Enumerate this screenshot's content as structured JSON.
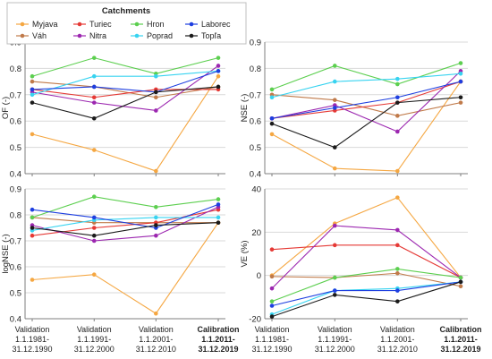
{
  "chart_data": [
    {
      "id": "of",
      "type": "line",
      "ylabel": "OF (-)",
      "ylim": [
        0.4,
        0.9
      ],
      "yticks": [
        0.4,
        0.5,
        0.6,
        0.7,
        0.8,
        0.9
      ],
      "yticklabels": [
        "0.4",
        "0.5",
        "0.6",
        "0.7",
        "0.8",
        "0.9"
      ],
      "grid": true,
      "series": [
        {
          "name": "Myjava",
          "color": "#f5a742",
          "values": [
            0.55,
            0.49,
            0.41,
            0.77
          ]
        },
        {
          "name": "Váh",
          "color": "#c07a4a",
          "values": [
            0.75,
            0.73,
            0.69,
            0.73
          ]
        },
        {
          "name": "Turiec",
          "color": "#e53935",
          "values": [
            0.72,
            0.69,
            0.72,
            0.72
          ]
        },
        {
          "name": "Nitra",
          "color": "#9c27b0",
          "values": [
            0.71,
            0.67,
            0.64,
            0.81
          ]
        },
        {
          "name": "Hron",
          "color": "#5ccf4f",
          "values": [
            0.77,
            0.84,
            0.78,
            0.84
          ]
        },
        {
          "name": "Poprad",
          "color": "#37d3f0",
          "values": [
            0.7,
            0.77,
            0.77,
            0.79
          ]
        },
        {
          "name": "Laborec",
          "color": "#1e3fe0",
          "values": [
            0.72,
            0.73,
            0.71,
            0.79
          ]
        },
        {
          "name": "Topľa",
          "color": "#1a1a1a",
          "values": [
            0.67,
            0.61,
            0.71,
            0.73
          ]
        }
      ]
    },
    {
      "id": "nse",
      "type": "line",
      "ylabel": "NSE (-)",
      "ylim": [
        0.4,
        0.9
      ],
      "yticks": [
        0.4,
        0.5,
        0.6,
        0.7,
        0.8,
        0.9
      ],
      "yticklabels": [
        "0.4",
        "0.5",
        "0.6",
        "0.7",
        "0.8",
        "0.9"
      ],
      "grid": true,
      "series": [
        {
          "name": "Myjava",
          "color": "#f5a742",
          "values": [
            0.55,
            0.42,
            0.41,
            0.75
          ]
        },
        {
          "name": "Váh",
          "color": "#c07a4a",
          "values": [
            0.7,
            0.68,
            0.62,
            0.67
          ]
        },
        {
          "name": "Turiec",
          "color": "#e53935",
          "values": [
            0.61,
            0.64,
            0.67,
            0.75
          ]
        },
        {
          "name": "Nitra",
          "color": "#9c27b0",
          "values": [
            0.61,
            0.66,
            0.56,
            0.79
          ]
        },
        {
          "name": "Hron",
          "color": "#5ccf4f",
          "values": [
            0.72,
            0.81,
            0.74,
            0.82
          ]
        },
        {
          "name": "Poprad",
          "color": "#37d3f0",
          "values": [
            0.69,
            0.75,
            0.76,
            0.78
          ]
        },
        {
          "name": "Laborec",
          "color": "#1e3fe0",
          "values": [
            0.61,
            0.65,
            0.69,
            0.75
          ]
        },
        {
          "name": "Topľa",
          "color": "#1a1a1a",
          "values": [
            0.59,
            0.5,
            0.67,
            0.69
          ]
        }
      ]
    },
    {
      "id": "lognse",
      "type": "line",
      "ylabel": "logNSE (-)",
      "ylim": [
        0.4,
        0.9
      ],
      "yticks": [
        0.4,
        0.5,
        0.6,
        0.7,
        0.8,
        0.9
      ],
      "yticklabels": [
        "0.4",
        "0.5",
        "0.6",
        "0.7",
        "0.8",
        "0.9"
      ],
      "grid": true,
      "series": [
        {
          "name": "Myjava",
          "color": "#f5a742",
          "values": [
            0.55,
            0.57,
            0.42,
            0.77
          ]
        },
        {
          "name": "Váh",
          "color": "#c07a4a",
          "values": [
            0.79,
            0.77,
            0.77,
            0.77
          ]
        },
        {
          "name": "Turiec",
          "color": "#e53935",
          "values": [
            0.72,
            0.75,
            0.77,
            0.82
          ]
        },
        {
          "name": "Nitra",
          "color": "#9c27b0",
          "values": [
            0.76,
            0.7,
            0.72,
            0.83
          ]
        },
        {
          "name": "Hron",
          "color": "#5ccf4f",
          "values": [
            0.79,
            0.87,
            0.83,
            0.86
          ]
        },
        {
          "name": "Poprad",
          "color": "#37d3f0",
          "values": [
            0.74,
            0.78,
            0.79,
            0.79
          ]
        },
        {
          "name": "Laborec",
          "color": "#1e3fe0",
          "values": [
            0.82,
            0.79,
            0.75,
            0.84
          ]
        },
        {
          "name": "Topľa",
          "color": "#1a1a1a",
          "values": [
            0.75,
            0.72,
            0.76,
            0.77
          ]
        }
      ]
    },
    {
      "id": "ve",
      "type": "line",
      "ylabel": "VE (%)",
      "ylim": [
        -20,
        40
      ],
      "yticks": [
        -20,
        0,
        20,
        40
      ],
      "yticklabels": [
        "-20",
        "0",
        "20",
        "40"
      ],
      "grid": true,
      "series": [
        {
          "name": "Myjava",
          "color": "#f5a742",
          "values": [
            0,
            24,
            36,
            -1
          ]
        },
        {
          "name": "Váh",
          "color": "#c07a4a",
          "values": [
            -0.5,
            -1,
            1,
            -5
          ]
        },
        {
          "name": "Turiec",
          "color": "#e53935",
          "values": [
            12,
            14,
            14,
            -1
          ]
        },
        {
          "name": "Nitra",
          "color": "#9c27b0",
          "values": [
            -6,
            23,
            21,
            -1
          ]
        },
        {
          "name": "Hron",
          "color": "#5ccf4f",
          "values": [
            -12,
            -1,
            3,
            -1
          ]
        },
        {
          "name": "Poprad",
          "color": "#37d3f0",
          "values": [
            -18,
            -7,
            -6,
            -3
          ]
        },
        {
          "name": "Laborec",
          "color": "#1e3fe0",
          "values": [
            -14,
            -7,
            -7,
            -3
          ]
        },
        {
          "name": "Topľa",
          "color": "#1a1a1a",
          "values": [
            -19,
            -9,
            -12,
            -3
          ]
        }
      ]
    }
  ],
  "categories": [
    {
      "lines": [
        "Validation",
        "1.1.1981-",
        "31.12.1990"
      ],
      "bold": false
    },
    {
      "lines": [
        "Validation",
        "1.1.1991-",
        "31.12.2000"
      ],
      "bold": false
    },
    {
      "lines": [
        "Validation",
        "1.1.2001-",
        "31.12.2010"
      ],
      "bold": false
    },
    {
      "lines": [
        "Calibration",
        "1.1.2011-",
        "31.12.2019"
      ],
      "bold": true
    }
  ],
  "legend": {
    "title": "Catchments",
    "placement": "top-left",
    "items": [
      {
        "name": "Myjava",
        "color": "#f5a742"
      },
      {
        "name": "Turiec",
        "color": "#e53935"
      },
      {
        "name": "Hron",
        "color": "#5ccf4f"
      },
      {
        "name": "Laborec",
        "color": "#1e3fe0"
      },
      {
        "name": "Váh",
        "color": "#c07a4a"
      },
      {
        "name": "Nitra",
        "color": "#9c27b0"
      },
      {
        "name": "Poprad",
        "color": "#37d3f0"
      },
      {
        "name": "Topľa",
        "color": "#1a1a1a"
      }
    ]
  }
}
